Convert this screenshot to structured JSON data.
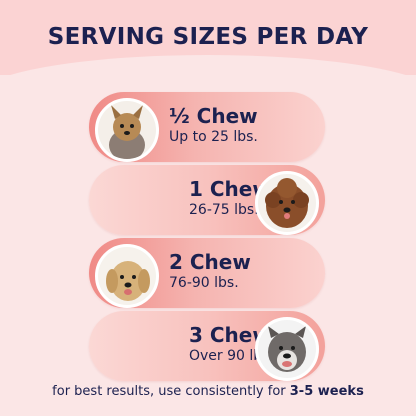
{
  "title": "SERVING SIZES PER DAY",
  "rows": [
    {
      "portion": "½ Chew",
      "weight": "Up to 25 lbs.",
      "dog": "yorkshire-terrier-photo"
    },
    {
      "portion": "1 Chew",
      "weight": "26-75 lbs.",
      "dog": "doodle-dog-photo"
    },
    {
      "portion": "2 Chew",
      "weight": "76-90 lbs.",
      "dog": "golden-retriever-photo"
    },
    {
      "portion": "3 Chew",
      "weight": "Over 90 lbs.",
      "dog": "pit-bull-photo"
    }
  ],
  "footer": {
    "text": "for best results, use consistently for ",
    "highlight": "3-5 weeks"
  },
  "colors": {
    "navy": "#1c2150",
    "pill_strong": "#f08a86",
    "pill_light": "#fbd2cf",
    "background": "#fbe6e6"
  }
}
